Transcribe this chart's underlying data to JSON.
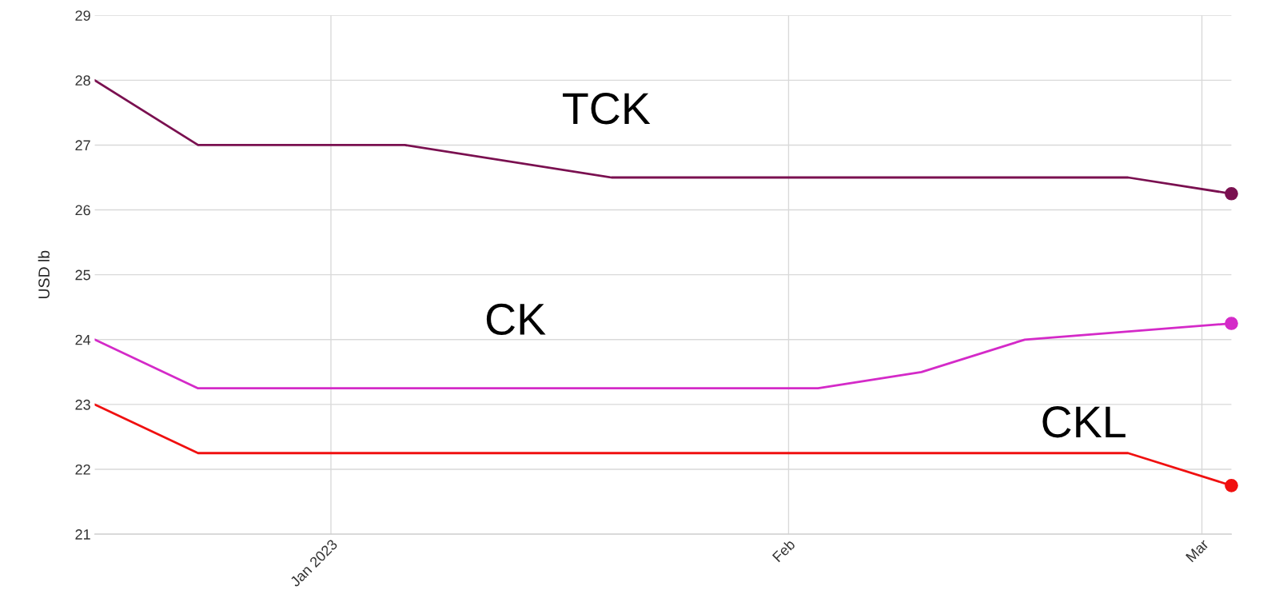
{
  "chart_data": {
    "type": "line",
    "ylabel": "USD lb",
    "ylim": [
      21,
      29
    ],
    "yticks": [
      21,
      22,
      23,
      24,
      25,
      26,
      27,
      28,
      29
    ],
    "xlim": [
      "2022-12-16",
      "2023-03-03"
    ],
    "xticks": [
      {
        "value": "2023-01-01",
        "label": "Jan 2023"
      },
      {
        "value": "2023-02-01",
        "label": "Feb"
      },
      {
        "value": "2023-03-01",
        "label": "Mar"
      }
    ],
    "grid": true,
    "legend": false,
    "series": [
      {
        "name": "TCK",
        "color": "#7a1050",
        "x": [
          "2022-12-16",
          "2022-12-23",
          "2023-01-06",
          "2023-01-20",
          "2023-02-24",
          "2023-03-03"
        ],
        "values": [
          28,
          27,
          27,
          26.5,
          26.5,
          26.25
        ]
      },
      {
        "name": "CK",
        "color": "#d42ac8",
        "x": [
          "2022-12-16",
          "2022-12-23",
          "2023-02-03",
          "2023-02-10",
          "2023-02-17",
          "2023-03-03"
        ],
        "values": [
          24,
          23.25,
          23.25,
          23.5,
          24,
          24.25
        ]
      },
      {
        "name": "CKL",
        "color": "#f01010",
        "x": [
          "2022-12-16",
          "2022-12-23",
          "2023-02-24",
          "2023-03-03"
        ],
        "values": [
          23,
          22.25,
          22.25,
          21.75
        ]
      },
      {
        "type": "scatter",
        "marker": "circle",
        "color": "#7a1050",
        "x": [
          "2023-03-03"
        ],
        "values": [
          26.25
        ]
      },
      {
        "type": "scatter",
        "marker": "circle",
        "color": "#d42ac8",
        "x": [
          "2023-03-03"
        ],
        "values": [
          24.25
        ]
      },
      {
        "type": "scatter",
        "marker": "circle",
        "color": "#f01010",
        "x": [
          "2023-03-03"
        ],
        "values": [
          21.75
        ]
      }
    ]
  }
}
